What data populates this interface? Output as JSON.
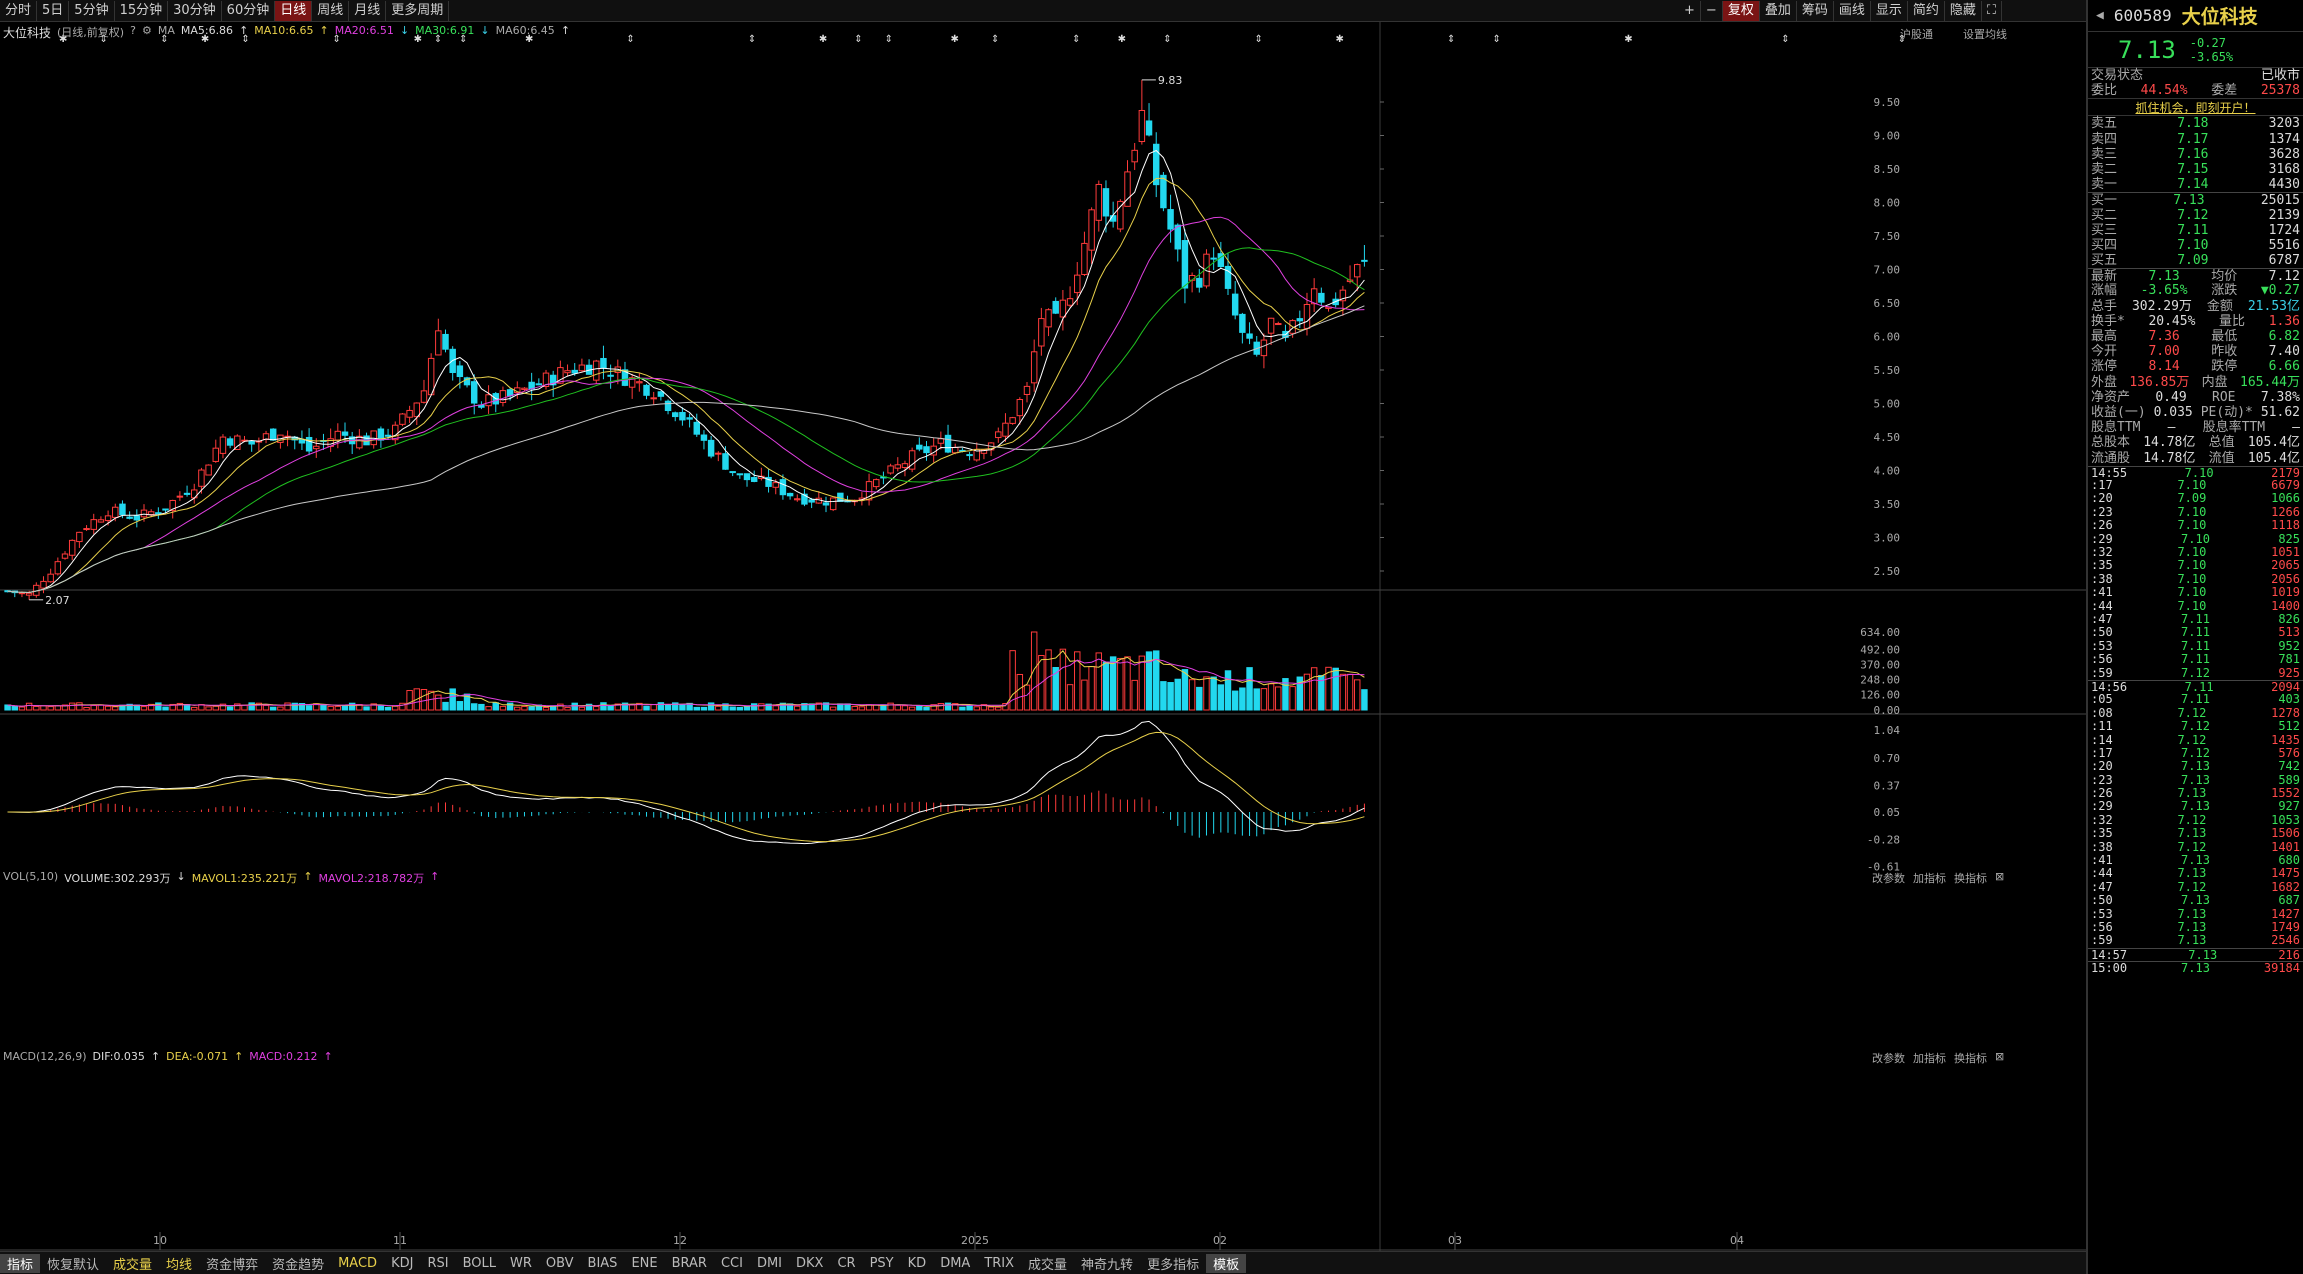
{
  "toolbar": {
    "tabs": [
      "分时",
      "5日",
      "5分钟",
      "15分钟",
      "30分钟",
      "60分钟",
      "日线",
      "周线",
      "月线",
      "更多周期"
    ],
    "selected": "日线",
    "right": [
      "复权",
      "叠加",
      "筹码",
      "画线",
      "显示",
      "简约",
      "隐藏"
    ]
  },
  "legend_top": {
    "name": "大位科技",
    "mode": "(日线,前复权)",
    "ma": "MA",
    "ma5": "MA5:6.86",
    "ma10": "MA10:6.65",
    "ma20": "MA20:6.51",
    "ma30": "MA30:6.91",
    "ma60": "MA60:6.45",
    "right1": "沪股通",
    "right2": "设置均线"
  },
  "vol_legend": {
    "name": "VOL(5,10)",
    "volume": "VOLUME:302.293万",
    "mavol1": "MAVOL1:235.221万",
    "mavol2": "MAVOL2:218.782万",
    "btns": [
      "改参数",
      "加指标",
      "换指标"
    ]
  },
  "macd_legend": {
    "name": "MACD(12,26,9)",
    "dif": "DIF:0.035",
    "dea": "DEA:-0.071",
    "macd": "MACD:0.212",
    "btns": [
      "改参数",
      "加指标",
      "换指标"
    ]
  },
  "colors": {
    "up": "#ff3b3b",
    "down": "#22d8ef",
    "ma5": "#ffffff",
    "ma10": "#e8d04a",
    "ma20": "#e040e0",
    "ma30": "#20c020",
    "ma60": "#c8c8c8"
  },
  "annotations": {
    "high": "9.83",
    "low": "2.07"
  },
  "chart_data": {
    "type": "candlestick",
    "price_axis": [
      "9.50",
      "9.00",
      "8.50",
      "8.00",
      "7.50",
      "7.00",
      "6.50",
      "6.00",
      "5.50",
      "5.00",
      "4.50",
      "4.00",
      "3.50",
      "3.00",
      "2.50"
    ],
    "vol_axis": [
      "634.00",
      "492.00",
      "370.00",
      "248.00",
      "126.00",
      "0.00"
    ],
    "macd_axis": [
      "1.04",
      "0.70",
      "0.37",
      "0.05",
      "-0.28",
      "-0.61"
    ],
    "x_labels": [
      "10",
      "11",
      "12",
      "2025",
      "02",
      "03",
      "04"
    ],
    "anchors": [
      [
        0,
        2.2
      ],
      [
        3,
        2.15
      ],
      [
        6,
        2.5
      ],
      [
        10,
        3.1
      ],
      [
        14,
        3.4
      ],
      [
        18,
        3.3
      ],
      [
        22,
        3.45
      ],
      [
        26,
        3.8
      ],
      [
        30,
        4.5
      ],
      [
        34,
        4.4
      ],
      [
        38,
        4.6
      ],
      [
        42,
        4.3
      ],
      [
        46,
        4.55
      ],
      [
        50,
        4.45
      ],
      [
        54,
        4.6
      ],
      [
        58,
        5.2
      ],
      [
        60,
        6.2
      ],
      [
        62,
        5.4
      ],
      [
        66,
        5.0
      ],
      [
        70,
        5.1
      ],
      [
        74,
        5.3
      ],
      [
        78,
        5.5
      ],
      [
        82,
        5.6
      ],
      [
        86,
        5.4
      ],
      [
        90,
        5.2
      ],
      [
        94,
        4.8
      ],
      [
        98,
        4.3
      ],
      [
        102,
        3.9
      ],
      [
        106,
        3.8
      ],
      [
        110,
        3.6
      ],
      [
        114,
        3.55
      ],
      [
        118,
        3.6
      ],
      [
        122,
        3.9
      ],
      [
        126,
        4.2
      ],
      [
        130,
        4.4
      ],
      [
        134,
        4.3
      ],
      [
        138,
        4.5
      ],
      [
        142,
        5.2
      ],
      [
        144,
        6.3
      ],
      [
        146,
        6.2
      ],
      [
        148,
        6.7
      ],
      [
        150,
        7.4
      ],
      [
        152,
        8.2
      ],
      [
        154,
        7.7
      ],
      [
        156,
        8.5
      ],
      [
        158,
        9.3
      ],
      [
        160,
        8.3
      ],
      [
        162,
        7.6
      ],
      [
        164,
        6.8
      ],
      [
        166,
        6.9
      ],
      [
        168,
        7.3
      ],
      [
        170,
        6.6
      ],
      [
        172,
        6.0
      ],
      [
        174,
        5.7
      ],
      [
        176,
        6.2
      ],
      [
        178,
        5.9
      ],
      [
        180,
        6.3
      ],
      [
        182,
        6.8
      ],
      [
        184,
        6.4
      ],
      [
        186,
        6.7
      ],
      [
        188,
        7.0
      ],
      [
        189,
        7.13
      ]
    ],
    "last_close": 7.13
  },
  "quote": {
    "code": "600589",
    "name": "大位科技",
    "price": "7.13",
    "chg": "-0.27",
    "pct": "-3.65%",
    "status_label": "交易状态",
    "status": "已收市",
    "wb_label": "委比",
    "wb": "44.54%",
    "wc_label": "委差",
    "wc": "25378",
    "promo": "抓住机会，即刻开户！",
    "sells": [
      [
        "卖五",
        "7.18",
        "3203"
      ],
      [
        "卖四",
        "7.17",
        "1374"
      ],
      [
        "卖三",
        "7.16",
        "3628"
      ],
      [
        "卖二",
        "7.15",
        "3168"
      ],
      [
        "卖一",
        "7.14",
        "4430"
      ]
    ],
    "buys": [
      [
        "买一",
        "7.13",
        "25015"
      ],
      [
        "买二",
        "7.12",
        "2139"
      ],
      [
        "买三",
        "7.11",
        "1724"
      ],
      [
        "买四",
        "7.10",
        "5516"
      ],
      [
        "买五",
        "7.09",
        "6787"
      ]
    ],
    "stats": [
      [
        "最新",
        "7.13",
        "均价",
        "7.12"
      ],
      [
        "涨幅",
        "-3.65%",
        "涨跌",
        "▼0.27"
      ],
      [
        "总手",
        "302.29万",
        "金额",
        "21.53亿"
      ],
      [
        "换手*",
        "20.45%",
        "量比",
        "1.36"
      ],
      [
        "最高",
        "7.36",
        "最低",
        "6.82"
      ],
      [
        "今开",
        "7.00",
        "昨收",
        "7.40"
      ],
      [
        "涨停",
        "8.14",
        "跌停",
        "6.66"
      ],
      [
        "外盘",
        "136.85万",
        "内盘",
        "165.44万"
      ],
      [
        "净资产",
        "0.49",
        "ROE",
        "7.38%"
      ],
      [
        "收益(一)",
        "0.035",
        "PE(动)*",
        "51.62"
      ],
      [
        "股息TTM",
        "—",
        "股息率TTM",
        "—"
      ],
      [
        "总股本",
        "14.78亿",
        "总值",
        "105.4亿"
      ],
      [
        "流通股",
        "14.78亿",
        "流值",
        "105.4亿"
      ]
    ],
    "ticks": [
      [
        "14:55",
        "7.10",
        "2179"
      ],
      [
        ":17",
        "7.10",
        "6679"
      ],
      [
        ":20",
        "7.09",
        "1066"
      ],
      [
        ":23",
        "7.10",
        "1266"
      ],
      [
        ":26",
        "7.10",
        "1118"
      ],
      [
        ":29",
        "7.10",
        "825"
      ],
      [
        ":32",
        "7.10",
        "1051"
      ],
      [
        ":35",
        "7.10",
        "2065"
      ],
      [
        ":38",
        "7.10",
        "2056"
      ],
      [
        ":41",
        "7.10",
        "1019"
      ],
      [
        ":44",
        "7.10",
        "1400"
      ],
      [
        ":47",
        "7.11",
        "826"
      ],
      [
        ":50",
        "7.11",
        "513"
      ],
      [
        ":53",
        "7.11",
        "952"
      ],
      [
        ":56",
        "7.11",
        "781"
      ],
      [
        ":59",
        "7.12",
        "925"
      ],
      [
        "14:56",
        "7.11",
        "2094"
      ],
      [
        ":05",
        "7.11",
        "403"
      ],
      [
        ":08",
        "7.12",
        "1278"
      ],
      [
        ":11",
        "7.12",
        "512"
      ],
      [
        ":14",
        "7.12",
        "1435"
      ],
      [
        ":17",
        "7.12",
        "576"
      ],
      [
        ":20",
        "7.13",
        "742"
      ],
      [
        ":23",
        "7.13",
        "589"
      ],
      [
        ":26",
        "7.13",
        "1552"
      ],
      [
        ":29",
        "7.13",
        "927"
      ],
      [
        ":32",
        "7.12",
        "1053"
      ],
      [
        ":35",
        "7.13",
        "1506"
      ],
      [
        ":38",
        "7.12",
        "1401"
      ],
      [
        ":41",
        "7.13",
        "680"
      ],
      [
        ":44",
        "7.13",
        "1475"
      ],
      [
        ":47",
        "7.12",
        "1682"
      ],
      [
        ":50",
        "7.13",
        "687"
      ],
      [
        ":53",
        "7.13",
        "1427"
      ],
      [
        ":56",
        "7.13",
        "1749"
      ],
      [
        ":59",
        "7.13",
        "2546"
      ],
      [
        "14:57",
        "7.13",
        "216"
      ],
      [
        "15:00",
        "7.13",
        "39184"
      ]
    ]
  },
  "bottom": [
    "指标",
    "恢复默认",
    "成交量",
    "均线",
    "资金博弈",
    "资金趋势",
    "MACD",
    "KDJ",
    "RSI",
    "BOLL",
    "WR",
    "OBV",
    "BIAS",
    "ENE",
    "BRAR",
    "CCI",
    "DMI",
    "DKX",
    "CR",
    "PSY",
    "KD",
    "DMA",
    "TRIX",
    "成交量",
    "神奇九转",
    "更多指标",
    "模板"
  ]
}
